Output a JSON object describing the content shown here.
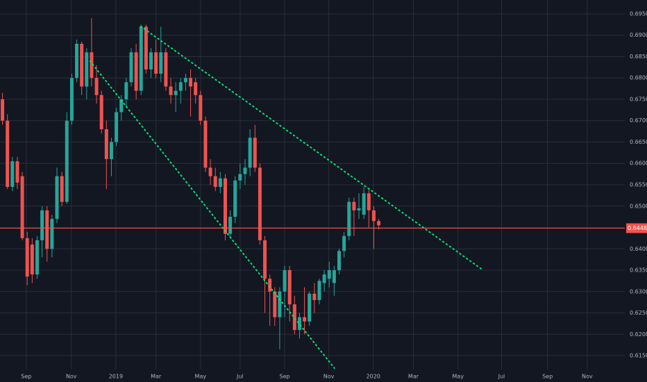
{
  "chart_data": {
    "type": "candlestick",
    "up_color": "#26a69a",
    "down_color": "#ef5350",
    "background": "#131722",
    "grid": true,
    "grid_color": "#2a2e39",
    "xlim": [
      -0.5,
      125.7
    ],
    "xticks": [
      {
        "value": 4.8,
        "label": "Sep"
      },
      {
        "value": 13.9,
        "label": "Nov"
      },
      {
        "value": 22.9,
        "label": "2019"
      },
      {
        "value": 31.0,
        "label": "Mar"
      },
      {
        "value": 40.0,
        "label": "May"
      },
      {
        "value": 48.0,
        "label": "Jul"
      },
      {
        "value": 57.0,
        "label": "Sep"
      },
      {
        "value": 65.9,
        "label": "Nov"
      },
      {
        "value": 74.9,
        "label": "2020"
      },
      {
        "value": 83.0,
        "label": "Mar"
      },
      {
        "value": 92.0,
        "label": "May"
      },
      {
        "value": 100.8,
        "label": "Jul"
      },
      {
        "value": 110.1,
        "label": "Sep"
      },
      {
        "value": 118.1,
        "label": "Nov"
      }
    ],
    "ylim": [
      0.61175,
      0.69825
    ],
    "yticks": [
      {
        "value": 0.615,
        "label": "0.61500"
      },
      {
        "value": 0.62,
        "label": "0.62000"
      },
      {
        "value": 0.625,
        "label": "0.62500"
      },
      {
        "value": 0.63,
        "label": "0.63000"
      },
      {
        "value": 0.635,
        "label": "0.63500"
      },
      {
        "value": 0.64,
        "label": "0.64000"
      },
      {
        "value": 0.645,
        "label": "0.64500"
      },
      {
        "value": 0.65,
        "label": "0.65000"
      },
      {
        "value": 0.655,
        "label": "0.65500"
      },
      {
        "value": 0.66,
        "label": "0.66000"
      },
      {
        "value": 0.665,
        "label": "0.66500"
      },
      {
        "value": 0.67,
        "label": "0.67000"
      },
      {
        "value": 0.675,
        "label": "0.67500"
      },
      {
        "value": 0.68,
        "label": "0.68000"
      },
      {
        "value": 0.685,
        "label": "0.68500"
      },
      {
        "value": 0.69,
        "label": "0.69000"
      },
      {
        "value": 0.695,
        "label": "0.69500"
      }
    ],
    "last_price": {
      "value": 0.64483,
      "label": "0.64483",
      "color": "#ef5350"
    },
    "trendlines": [
      {
        "color": "#00e676",
        "from": [
          27.95,
          0.69207
        ],
        "to": [
          96.9,
          0.63516
        ]
      },
      {
        "color": "#00e676",
        "from": [
          17.7,
          0.68394
        ],
        "to": [
          67.05,
          0.61207
        ]
      }
    ],
    "candles": [
      [
        0.675,
        0.6765,
        0.669,
        0.67
      ],
      [
        0.67,
        0.6715,
        0.654,
        0.6545
      ],
      [
        0.6545,
        0.6615,
        0.6535,
        0.6605
      ],
      [
        0.6605,
        0.6615,
        0.654,
        0.6555
      ],
      [
        0.657,
        0.658,
        0.642,
        0.6425
      ],
      [
        0.6425,
        0.644,
        0.6315,
        0.6335
      ],
      [
        0.641,
        0.6425,
        0.632,
        0.634
      ],
      [
        0.634,
        0.643,
        0.633,
        0.642
      ],
      [
        0.642,
        0.65,
        0.638,
        0.649
      ],
      [
        0.649,
        0.65,
        0.637,
        0.64
      ],
      [
        0.64,
        0.648,
        0.638,
        0.647
      ],
      [
        0.647,
        0.659,
        0.646,
        0.657
      ],
      [
        0.657,
        0.658,
        0.65,
        0.651
      ],
      [
        0.651,
        0.672,
        0.6505,
        0.67
      ],
      [
        0.67,
        0.681,
        0.669,
        0.68
      ],
      [
        0.68,
        0.689,
        0.679,
        0.688
      ],
      [
        0.688,
        0.6885,
        0.676,
        0.678
      ],
      [
        0.678,
        0.687,
        0.675,
        0.686
      ],
      [
        0.686,
        0.694,
        0.678,
        0.68
      ],
      [
        0.68,
        0.683,
        0.674,
        0.676
      ],
      [
        0.676,
        0.677,
        0.667,
        0.668
      ],
      [
        0.668,
        0.67,
        0.654,
        0.661
      ],
      [
        0.661,
        0.666,
        0.657,
        0.665
      ],
      [
        0.665,
        0.673,
        0.664,
        0.672
      ],
      [
        0.672,
        0.676,
        0.67,
        0.675
      ],
      [
        0.675,
        0.68,
        0.673,
        0.679
      ],
      [
        0.679,
        0.687,
        0.678,
        0.686
      ],
      [
        0.686,
        0.688,
        0.675,
        0.677
      ],
      [
        0.677,
        0.6925,
        0.676,
        0.692
      ],
      [
        0.692,
        0.6925,
        0.681,
        0.682
      ],
      [
        0.682,
        0.687,
        0.68,
        0.686
      ],
      [
        0.686,
        0.689,
        0.68,
        0.681
      ],
      [
        0.681,
        0.692,
        0.679,
        0.686
      ],
      [
        0.686,
        0.687,
        0.677,
        0.678
      ],
      [
        0.678,
        0.68,
        0.674,
        0.676
      ],
      [
        0.676,
        0.679,
        0.672,
        0.677
      ],
      [
        0.677,
        0.68,
        0.674,
        0.679
      ],
      [
        0.679,
        0.681,
        0.677,
        0.68
      ],
      [
        0.68,
        0.682,
        0.671,
        0.678
      ],
      [
        0.679,
        0.68,
        0.674,
        0.676
      ],
      [
        0.676,
        0.677,
        0.669,
        0.67
      ],
      [
        0.67,
        0.671,
        0.658,
        0.659
      ],
      [
        0.659,
        0.661,
        0.655,
        0.657
      ],
      [
        0.657,
        0.659,
        0.6535,
        0.6545
      ],
      [
        0.6545,
        0.658,
        0.653,
        0.6565
      ],
      [
        0.6565,
        0.6575,
        0.642,
        0.6435
      ],
      [
        0.6435,
        0.649,
        0.6425,
        0.6475
      ],
      [
        0.6475,
        0.657,
        0.646,
        0.656
      ],
      [
        0.656,
        0.66,
        0.654,
        0.6575
      ],
      [
        0.6575,
        0.661,
        0.655,
        0.659
      ],
      [
        0.659,
        0.668,
        0.657,
        0.666
      ],
      [
        0.666,
        0.669,
        0.658,
        0.659
      ],
      [
        0.659,
        0.66,
        0.641,
        0.642
      ],
      [
        0.642,
        0.643,
        0.625,
        0.633
      ],
      [
        0.633,
        0.634,
        0.622,
        0.63
      ],
      [
        0.63,
        0.631,
        0.622,
        0.624
      ],
      [
        0.624,
        0.631,
        0.6165,
        0.63
      ],
      [
        0.63,
        0.636,
        0.624,
        0.635
      ],
      [
        0.635,
        0.636,
        0.623,
        0.627
      ],
      [
        0.627,
        0.629,
        0.62,
        0.621
      ],
      [
        0.621,
        0.625,
        0.619,
        0.624
      ],
      [
        0.624,
        0.631,
        0.62,
        0.623
      ],
      [
        0.623,
        0.63,
        0.622,
        0.6295
      ],
      [
        0.6295,
        0.632,
        0.625,
        0.628
      ],
      [
        0.628,
        0.633,
        0.627,
        0.6325
      ],
      [
        0.632,
        0.635,
        0.63,
        0.634
      ],
      [
        0.633,
        0.637,
        0.631,
        0.635
      ],
      [
        0.632,
        0.636,
        0.629,
        0.635
      ],
      [
        0.635,
        0.64,
        0.634,
        0.6395
      ],
      [
        0.6395,
        0.644,
        0.638,
        0.643
      ],
      [
        0.643,
        0.652,
        0.642,
        0.651
      ],
      [
        0.651,
        0.652,
        0.643,
        0.649
      ],
      [
        0.649,
        0.653,
        0.647,
        0.6495
      ],
      [
        0.648,
        0.6545,
        0.647,
        0.653
      ],
      [
        0.653,
        0.654,
        0.645,
        0.649
      ],
      [
        0.649,
        0.65,
        0.64,
        0.6465
      ],
      [
        0.6465,
        0.647,
        0.6445,
        0.6455
      ]
    ]
  }
}
